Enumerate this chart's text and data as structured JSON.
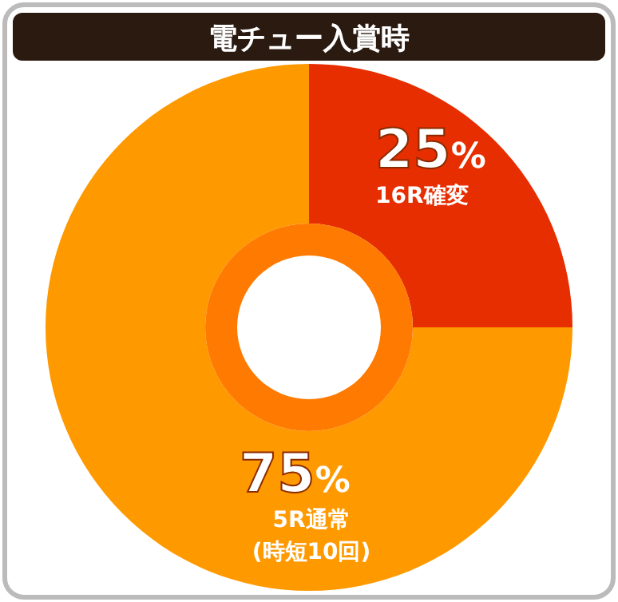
{
  "chart_data": {
    "type": "donut",
    "title": "電チュー入賞時",
    "categories": [
      "16R確変",
      "5R通常"
    ],
    "values": [
      25,
      75
    ],
    "colors": [
      "#e62e00",
      "#ff9900"
    ],
    "value_labels": [
      "25%",
      "75%"
    ],
    "annotations": [
      "(時短10回)"
    ]
  }
}
